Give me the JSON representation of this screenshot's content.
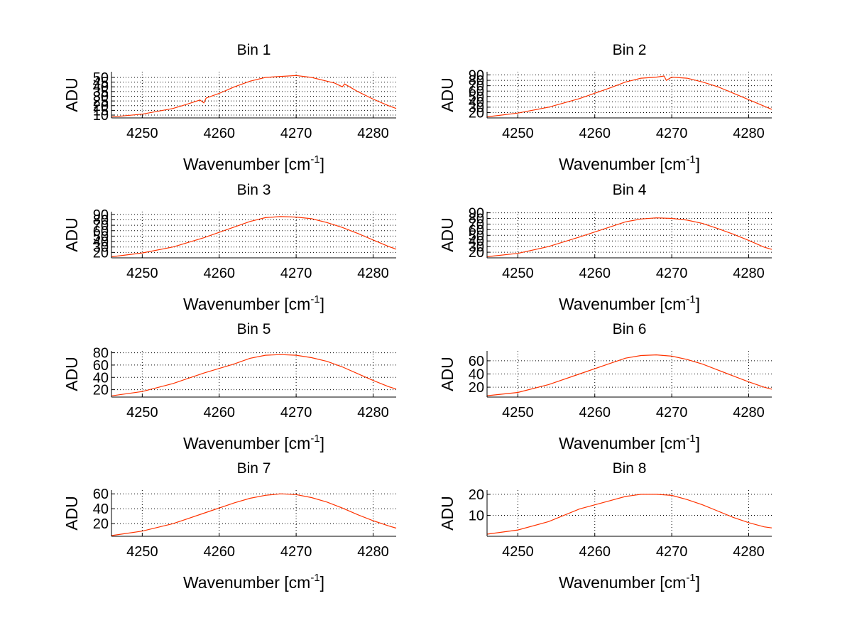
{
  "chart_data": [
    {
      "type": "line",
      "title": "Bin 1",
      "xlabel": "Wavenumber [cm",
      "xlabel_sup": "-1",
      "xlabel_end": "]",
      "ylabel": "ADU",
      "xlim": [
        4246,
        4283
      ],
      "ylim": [
        7,
        56
      ],
      "grid": true,
      "xticks": [
        4250,
        4260,
        4270,
        4280
      ],
      "yticks": [
        10,
        15,
        20,
        25,
        30,
        35,
        40,
        45,
        50
      ],
      "series": [
        {
          "color": "#ff3300",
          "x": [
            4246,
            4250,
            4254,
            4256,
            4257.5,
            4258,
            4258.3,
            4260,
            4262,
            4264,
            4266,
            4268,
            4270,
            4272,
            4274,
            4275,
            4276,
            4276.3,
            4278,
            4280,
            4282,
            4283
          ],
          "y": [
            8,
            11,
            17,
            22,
            26,
            23,
            28,
            33,
            40,
            46,
            50,
            51,
            52,
            50,
            46,
            44,
            40,
            43,
            35,
            27,
            20,
            17
          ]
        }
      ]
    },
    {
      "type": "line",
      "title": "Bin 2",
      "xlabel": "Wavenumber [cm",
      "xlabel_sup": "-1",
      "xlabel_end": "]",
      "ylabel": "ADU",
      "xlim": [
        4246,
        4283
      ],
      "ylim": [
        10,
        96
      ],
      "grid": true,
      "xticks": [
        4250,
        4260,
        4270,
        4280
      ],
      "yticks": [
        20,
        30,
        40,
        50,
        60,
        70,
        80,
        90
      ],
      "series": [
        {
          "color": "#ff3300",
          "x": [
            4246,
            4250,
            4254,
            4258,
            4262,
            4264,
            4266,
            4268,
            4269,
            4269.3,
            4270,
            4272,
            4274,
            4276,
            4278,
            4280,
            4282,
            4283
          ],
          "y": [
            12,
            19,
            30,
            46,
            66,
            77,
            84,
            86,
            88,
            80,
            86,
            84,
            77,
            68,
            56,
            44,
            32,
            26
          ]
        }
      ]
    },
    {
      "type": "line",
      "title": "Bin 3",
      "xlabel": "Wavenumber [cm",
      "xlabel_sup": "-1",
      "xlabel_end": "]",
      "ylabel": "ADU",
      "xlim": [
        4246,
        4283
      ],
      "ylim": [
        10,
        95
      ],
      "grid": true,
      "xticks": [
        4250,
        4260,
        4270,
        4280
      ],
      "yticks": [
        20,
        30,
        40,
        50,
        60,
        70,
        80,
        90
      ],
      "series": [
        {
          "color": "#ff3300",
          "x": [
            4246,
            4250,
            4254,
            4258,
            4262,
            4264,
            4266,
            4268,
            4270,
            4272,
            4274,
            4276,
            4278,
            4280,
            4282,
            4283
          ],
          "y": [
            12,
            19,
            30,
            47,
            67,
            77,
            84,
            86,
            85,
            82,
            75,
            66,
            55,
            43,
            31,
            26
          ]
        }
      ]
    },
    {
      "type": "line",
      "title": "Bin 4",
      "xlabel": "Wavenumber [cm",
      "xlabel_sup": "-1",
      "xlabel_end": "]",
      "ylabel": "ADU",
      "xlim": [
        4246,
        4283
      ],
      "ylim": [
        10,
        92
      ],
      "grid": true,
      "xticks": [
        4250,
        4260,
        4270,
        4280
      ],
      "yticks": [
        20,
        30,
        40,
        50,
        60,
        70,
        80,
        90
      ],
      "series": [
        {
          "color": "#ff3300",
          "x": [
            4246,
            4250,
            4254,
            4258,
            4262,
            4264,
            4266,
            4268,
            4270,
            4272,
            4274,
            4276,
            4278,
            4280,
            4282,
            4283
          ],
          "y": [
            12,
            18,
            30,
            47,
            65,
            74,
            79,
            81,
            80,
            77,
            71,
            62,
            52,
            41,
            29,
            25
          ]
        }
      ]
    },
    {
      "type": "line",
      "title": "Bin 5",
      "xlabel": "Wavenumber [cm",
      "xlabel_sup": "-1",
      "xlabel_end": "]",
      "ylabel": "ADU",
      "xlim": [
        4246,
        4283
      ],
      "ylim": [
        8,
        83
      ],
      "grid": true,
      "xticks": [
        4250,
        4260,
        4270,
        4280
      ],
      "yticks": [
        20,
        40,
        60,
        80
      ],
      "series": [
        {
          "color": "#ff3300",
          "x": [
            4246,
            4250,
            4254,
            4258,
            4262,
            4264,
            4266,
            4268,
            4270,
            4272,
            4274,
            4276,
            4278,
            4280,
            4282,
            4283
          ],
          "y": [
            10,
            17,
            30,
            47,
            62,
            71,
            76,
            77,
            76,
            72,
            66,
            57,
            46,
            35,
            25,
            21
          ]
        }
      ]
    },
    {
      "type": "line",
      "title": "Bin 6",
      "xlabel": "Wavenumber [cm",
      "xlabel_sup": "-1",
      "xlabel_end": "]",
      "ylabel": "ADU",
      "xlim": [
        4246,
        4283
      ],
      "ylim": [
        5,
        75
      ],
      "grid": true,
      "xticks": [
        4250,
        4260,
        4270,
        4280
      ],
      "yticks": [
        20,
        40,
        60
      ],
      "series": [
        {
          "color": "#ff3300",
          "x": [
            4246,
            4250,
            4254,
            4258,
            4262,
            4264,
            4266,
            4268,
            4270,
            4272,
            4274,
            4276,
            4278,
            4280,
            4282,
            4283
          ],
          "y": [
            7,
            12,
            24,
            40,
            56,
            64,
            68,
            69,
            67,
            62,
            55,
            46,
            37,
            28,
            20,
            17
          ]
        }
      ]
    },
    {
      "type": "line",
      "title": "Bin 7",
      "xlabel": "Wavenumber [cm",
      "xlabel_sup": "-1",
      "xlabel_end": "]",
      "ylabel": "ADU",
      "xlim": [
        4246,
        4283
      ],
      "ylim": [
        3,
        65
      ],
      "grid": true,
      "xticks": [
        4250,
        4260,
        4270,
        4280
      ],
      "yticks": [
        20,
        40,
        60
      ],
      "series": [
        {
          "color": "#ff3300",
          "x": [
            4246,
            4250,
            4254,
            4258,
            4262,
            4264,
            4266,
            4268,
            4270,
            4272,
            4274,
            4276,
            4278,
            4280,
            4282,
            4283
          ],
          "y": [
            4,
            10,
            20,
            34,
            48,
            54,
            58,
            60,
            59,
            55,
            49,
            41,
            32,
            24,
            17,
            14
          ]
        }
      ]
    },
    {
      "type": "line",
      "title": "Bin 8",
      "xlabel": "Wavenumber [cm",
      "xlabel_sup": "-1",
      "xlabel_end": "]",
      "ylabel": "ADU",
      "xlim": [
        4246,
        4283
      ],
      "ylim": [
        0,
        22
      ],
      "grid": true,
      "xticks": [
        4250,
        4260,
        4270,
        4280
      ],
      "yticks": [
        10,
        20
      ],
      "series": [
        {
          "color": "#ff3300",
          "x": [
            4246,
            4250,
            4254,
            4258,
            4262,
            4264,
            4266,
            4268,
            4270,
            4272,
            4274,
            4276,
            4278,
            4280,
            4282,
            4283
          ],
          "y": [
            1,
            3,
            7,
            13,
            17,
            19,
            20,
            20,
            19.5,
            17.5,
            15,
            12,
            9,
            6.5,
            4.5,
            4
          ]
        }
      ]
    }
  ]
}
